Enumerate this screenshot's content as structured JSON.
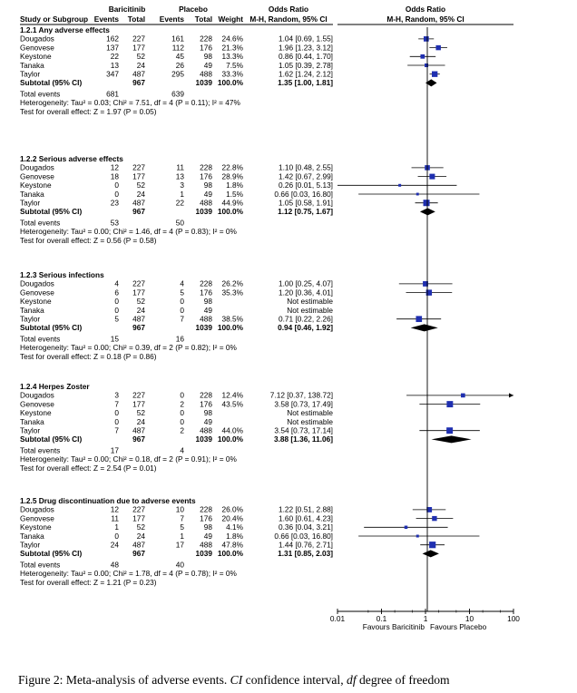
{
  "chart_data": {
    "type": "forest",
    "header": {
      "group1": "Baricitinib",
      "group2": "Placebo",
      "or_title": "Odds Ratio",
      "columns": [
        "Study or Subgroup",
        "Events",
        "Total",
        "Events",
        "Total",
        "Weight",
        "M-H, Random, 95% CI",
        "M-H, Random, 95% CI"
      ]
    },
    "axis": {
      "scale": "log",
      "range": [
        0.01,
        100
      ],
      "ticks": [
        "0.01",
        "0.1",
        "1",
        "10",
        "100"
      ],
      "tick_values": [
        0.01,
        0.1,
        1,
        10,
        100
      ],
      "left_label": "Favours Baricitinib",
      "right_label": "Favours Placebo"
    },
    "subgroups": [
      {
        "title": "1.2.1 Any adverse effects",
        "studies": [
          {
            "study": "Dougados",
            "e1": "162",
            "n1": "227",
            "e2": "161",
            "n2": "228",
            "weight": "24.6%",
            "ci": "1.04 [0.69, 1.55]",
            "or": 1.04,
            "lo": 0.69,
            "hi": 1.55
          },
          {
            "study": "Genovese",
            "e1": "137",
            "n1": "177",
            "e2": "112",
            "n2": "176",
            "weight": "21.3%",
            "ci": "1.96 [1.23, 3.12]",
            "or": 1.96,
            "lo": 1.23,
            "hi": 3.12
          },
          {
            "study": "Keystone",
            "e1": "22",
            "n1": "52",
            "e2": "45",
            "n2": "98",
            "weight": "13.3%",
            "ci": "0.86 [0.44, 1.70]",
            "or": 0.86,
            "lo": 0.44,
            "hi": 1.7
          },
          {
            "study": "Tanaka",
            "e1": "13",
            "n1": "24",
            "e2": "26",
            "n2": "49",
            "weight": "7.5%",
            "ci": "1.05 [0.39, 2.78]",
            "or": 1.05,
            "lo": 0.39,
            "hi": 2.78
          },
          {
            "study": "Taylor",
            "e1": "347",
            "n1": "487",
            "e2": "295",
            "n2": "488",
            "weight": "33.3%",
            "ci": "1.62 [1.24, 2.12]",
            "or": 1.62,
            "lo": 1.24,
            "hi": 2.12
          }
        ],
        "subtotal": {
          "label": "Subtotal (95% CI)",
          "n1": "967",
          "n2": "1039",
          "weight": "100.0%",
          "ci": "1.35 [1.00, 1.81]",
          "or": 1.35,
          "lo": 1.0,
          "hi": 1.81
        },
        "total_events": {
          "label": "Total events",
          "e1": "681",
          "e2": "639"
        },
        "heterogeneity": "Heterogeneity: Tau² = 0.03; Chi² = 7.51, df = 4 (P = 0.11); I² = 47%",
        "overall": "Test for overall effect: Z = 1.97 (P = 0.05)"
      },
      {
        "title": "1.2.2 Serious adverse effects",
        "studies": [
          {
            "study": "Dougados",
            "e1": "12",
            "n1": "227",
            "e2": "11",
            "n2": "228",
            "weight": "22.8%",
            "ci": "1.10 [0.48, 2.55]",
            "or": 1.1,
            "lo": 0.48,
            "hi": 2.55
          },
          {
            "study": "Genovese",
            "e1": "18",
            "n1": "177",
            "e2": "13",
            "n2": "176",
            "weight": "28.9%",
            "ci": "1.42 [0.67, 2.99]",
            "or": 1.42,
            "lo": 0.67,
            "hi": 2.99
          },
          {
            "study": "Keystone",
            "e1": "0",
            "n1": "52",
            "e2": "3",
            "n2": "98",
            "weight": "1.8%",
            "ci": "0.26 [0.01, 5.13]",
            "or": 0.26,
            "lo": 0.01,
            "hi": 5.13
          },
          {
            "study": "Tanaka",
            "e1": "0",
            "n1": "24",
            "e2": "1",
            "n2": "49",
            "weight": "1.5%",
            "ci": "0.66 [0.03, 16.80]",
            "or": 0.66,
            "lo": 0.03,
            "hi": 16.8
          },
          {
            "study": "Taylor",
            "e1": "23",
            "n1": "487",
            "e2": "22",
            "n2": "488",
            "weight": "44.9%",
            "ci": "1.05 [0.58, 1.91]",
            "or": 1.05,
            "lo": 0.58,
            "hi": 1.91
          }
        ],
        "subtotal": {
          "label": "Subtotal (95% CI)",
          "n1": "967",
          "n2": "1039",
          "weight": "100.0%",
          "ci": "1.12 [0.75, 1.67]",
          "or": 1.12,
          "lo": 0.75,
          "hi": 1.67
        },
        "total_events": {
          "label": "Total events",
          "e1": "53",
          "e2": "50"
        },
        "heterogeneity": "Heterogeneity: Tau² = 0.00; Chi² = 1.46, df = 4 (P = 0.83); I² = 0%",
        "overall": "Test for overall effect: Z = 0.56 (P = 0.58)"
      },
      {
        "title": "1.2.3 Serious infections",
        "studies": [
          {
            "study": "Dougados",
            "e1": "4",
            "n1": "227",
            "e2": "4",
            "n2": "228",
            "weight": "26.2%",
            "ci": "1.00 [0.25, 4.07]",
            "or": 1.0,
            "lo": 0.25,
            "hi": 4.07
          },
          {
            "study": "Genovese",
            "e1": "6",
            "n1": "177",
            "e2": "5",
            "n2": "176",
            "weight": "35.3%",
            "ci": "1.20 [0.36, 4.01]",
            "or": 1.2,
            "lo": 0.36,
            "hi": 4.01
          },
          {
            "study": "Keystone",
            "e1": "0",
            "n1": "52",
            "e2": "0",
            "n2": "98",
            "weight": "",
            "ci": "Not estimable",
            "or": null,
            "lo": null,
            "hi": null
          },
          {
            "study": "Tanaka",
            "e1": "0",
            "n1": "24",
            "e2": "0",
            "n2": "49",
            "weight": "",
            "ci": "Not estimable",
            "or": null,
            "lo": null,
            "hi": null
          },
          {
            "study": "Taylor",
            "e1": "5",
            "n1": "487",
            "e2": "7",
            "n2": "488",
            "weight": "38.5%",
            "ci": "0.71 [0.22, 2.26]",
            "or": 0.71,
            "lo": 0.22,
            "hi": 2.26
          }
        ],
        "subtotal": {
          "label": "Subtotal (95% CI)",
          "n1": "967",
          "n2": "1039",
          "weight": "100.0%",
          "ci": "0.94 [0.46, 1.92]",
          "or": 0.94,
          "lo": 0.46,
          "hi": 1.92
        },
        "total_events": {
          "label": "Total events",
          "e1": "15",
          "e2": "16"
        },
        "heterogeneity": "Heterogeneity: Tau² = 0.00; Chi² = 0.39, df = 2 (P = 0.82); I² = 0%",
        "overall": "Test for overall effect: Z = 0.18 (P = 0.86)"
      },
      {
        "title": "1.2.4 Herpes Zoster",
        "studies": [
          {
            "study": "Dougados",
            "e1": "3",
            "n1": "227",
            "e2": "0",
            "n2": "228",
            "weight": "12.4%",
            "ci": "7.12 [0.37, 138.72]",
            "or": 7.12,
            "lo": 0.37,
            "hi": 138.72
          },
          {
            "study": "Genovese",
            "e1": "7",
            "n1": "177",
            "e2": "2",
            "n2": "176",
            "weight": "43.5%",
            "ci": "3.58 [0.73, 17.49]",
            "or": 3.58,
            "lo": 0.73,
            "hi": 17.49
          },
          {
            "study": "Keystone",
            "e1": "0",
            "n1": "52",
            "e2": "0",
            "n2": "98",
            "weight": "",
            "ci": "Not estimable",
            "or": null,
            "lo": null,
            "hi": null
          },
          {
            "study": "Tanaka",
            "e1": "0",
            "n1": "24",
            "e2": "0",
            "n2": "49",
            "weight": "",
            "ci": "Not estimable",
            "or": null,
            "lo": null,
            "hi": null
          },
          {
            "study": "Taylor",
            "e1": "7",
            "n1": "487",
            "e2": "2",
            "n2": "488",
            "weight": "44.0%",
            "ci": "3.54 [0.73, 17.14]",
            "or": 3.54,
            "lo": 0.73,
            "hi": 17.14
          }
        ],
        "subtotal": {
          "label": "Subtotal (95% CI)",
          "n1": "967",
          "n2": "1039",
          "weight": "100.0%",
          "ci": "3.88 [1.36, 11.06]",
          "or": 3.88,
          "lo": 1.36,
          "hi": 11.06
        },
        "total_events": {
          "label": "Total events",
          "e1": "17",
          "e2": "4"
        },
        "heterogeneity": "Heterogeneity: Tau² = 0.00; Chi² = 0.18, df = 2 (P = 0.91); I² = 0%",
        "overall": "Test for overall effect: Z = 2.54 (P = 0.01)"
      },
      {
        "title": "1.2.5 Drug discontinuation due to adverse events",
        "studies": [
          {
            "study": "Dougados",
            "e1": "12",
            "n1": "227",
            "e2": "10",
            "n2": "228",
            "weight": "26.0%",
            "ci": "1.22 [0.51, 2.88]",
            "or": 1.22,
            "lo": 0.51,
            "hi": 2.88
          },
          {
            "study": "Genovese",
            "e1": "11",
            "n1": "177",
            "e2": "7",
            "n2": "176",
            "weight": "20.4%",
            "ci": "1.60 [0.61, 4.23]",
            "or": 1.6,
            "lo": 0.61,
            "hi": 4.23
          },
          {
            "study": "Keystone",
            "e1": "1",
            "n1": "52",
            "e2": "5",
            "n2": "98",
            "weight": "4.1%",
            "ci": "0.36 [0.04, 3.21]",
            "or": 0.36,
            "lo": 0.04,
            "hi": 3.21
          },
          {
            "study": "Tanaka",
            "e1": "0",
            "n1": "24",
            "e2": "1",
            "n2": "49",
            "weight": "1.8%",
            "ci": "0.66 [0.03, 16.80]",
            "or": 0.66,
            "lo": 0.03,
            "hi": 16.8
          },
          {
            "study": "Taylor",
            "e1": "24",
            "n1": "487",
            "e2": "17",
            "n2": "488",
            "weight": "47.8%",
            "ci": "1.44 [0.76, 2.71]",
            "or": 1.44,
            "lo": 0.76,
            "hi": 2.71
          }
        ],
        "subtotal": {
          "label": "Subtotal (95% CI)",
          "n1": "967",
          "n2": "1039",
          "weight": "100.0%",
          "ci": "1.31 [0.85, 2.03]",
          "or": 1.31,
          "lo": 0.85,
          "hi": 2.03
        },
        "total_events": {
          "label": "Total events",
          "e1": "48",
          "e2": "40"
        },
        "heterogeneity": "Heterogeneity: Tau² = 0.00; Chi² = 1.78, df = 4 (P = 0.78); I² = 0%",
        "overall": "Test for overall effect: Z = 1.21 (P = 0.23)"
      }
    ],
    "colors": {
      "marker": "#1f2fb0",
      "diamond": "#000000",
      "line": "#000000"
    }
  },
  "caption": {
    "prefix": "Figure 2: Meta-analysis of adverse events. ",
    "term1": "CI",
    "mid": " confidence interval, ",
    "term2": "df",
    "suffix": " degree of freedom"
  }
}
